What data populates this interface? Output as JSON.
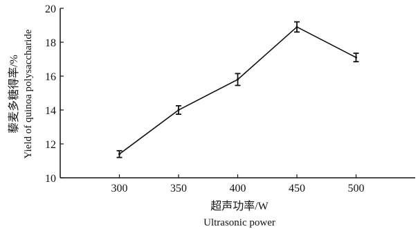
{
  "chart_data": {
    "type": "line",
    "title": "",
    "xlabel": "超声功率/W",
    "xlabel_en": "Ultrasonic power",
    "ylabel": "藜麦多糖得率/%",
    "ylabel_en": "Yield of quinoa polysaccharide",
    "xlim": [
      250,
      550
    ],
    "ylim": [
      10,
      20
    ],
    "xticks": [
      300,
      350,
      400,
      450,
      500
    ],
    "yticks": [
      10,
      12,
      14,
      16,
      18,
      20
    ],
    "grid": false,
    "series": [
      {
        "x": [
          300,
          350,
          400,
          450,
          500
        ],
        "y": [
          11.4,
          14.0,
          15.8,
          18.9,
          17.1
        ],
        "error": [
          0.2,
          0.25,
          0.35,
          0.3,
          0.25
        ]
      }
    ],
    "colors": {
      "line": "#111111",
      "axis": "#111111"
    }
  }
}
